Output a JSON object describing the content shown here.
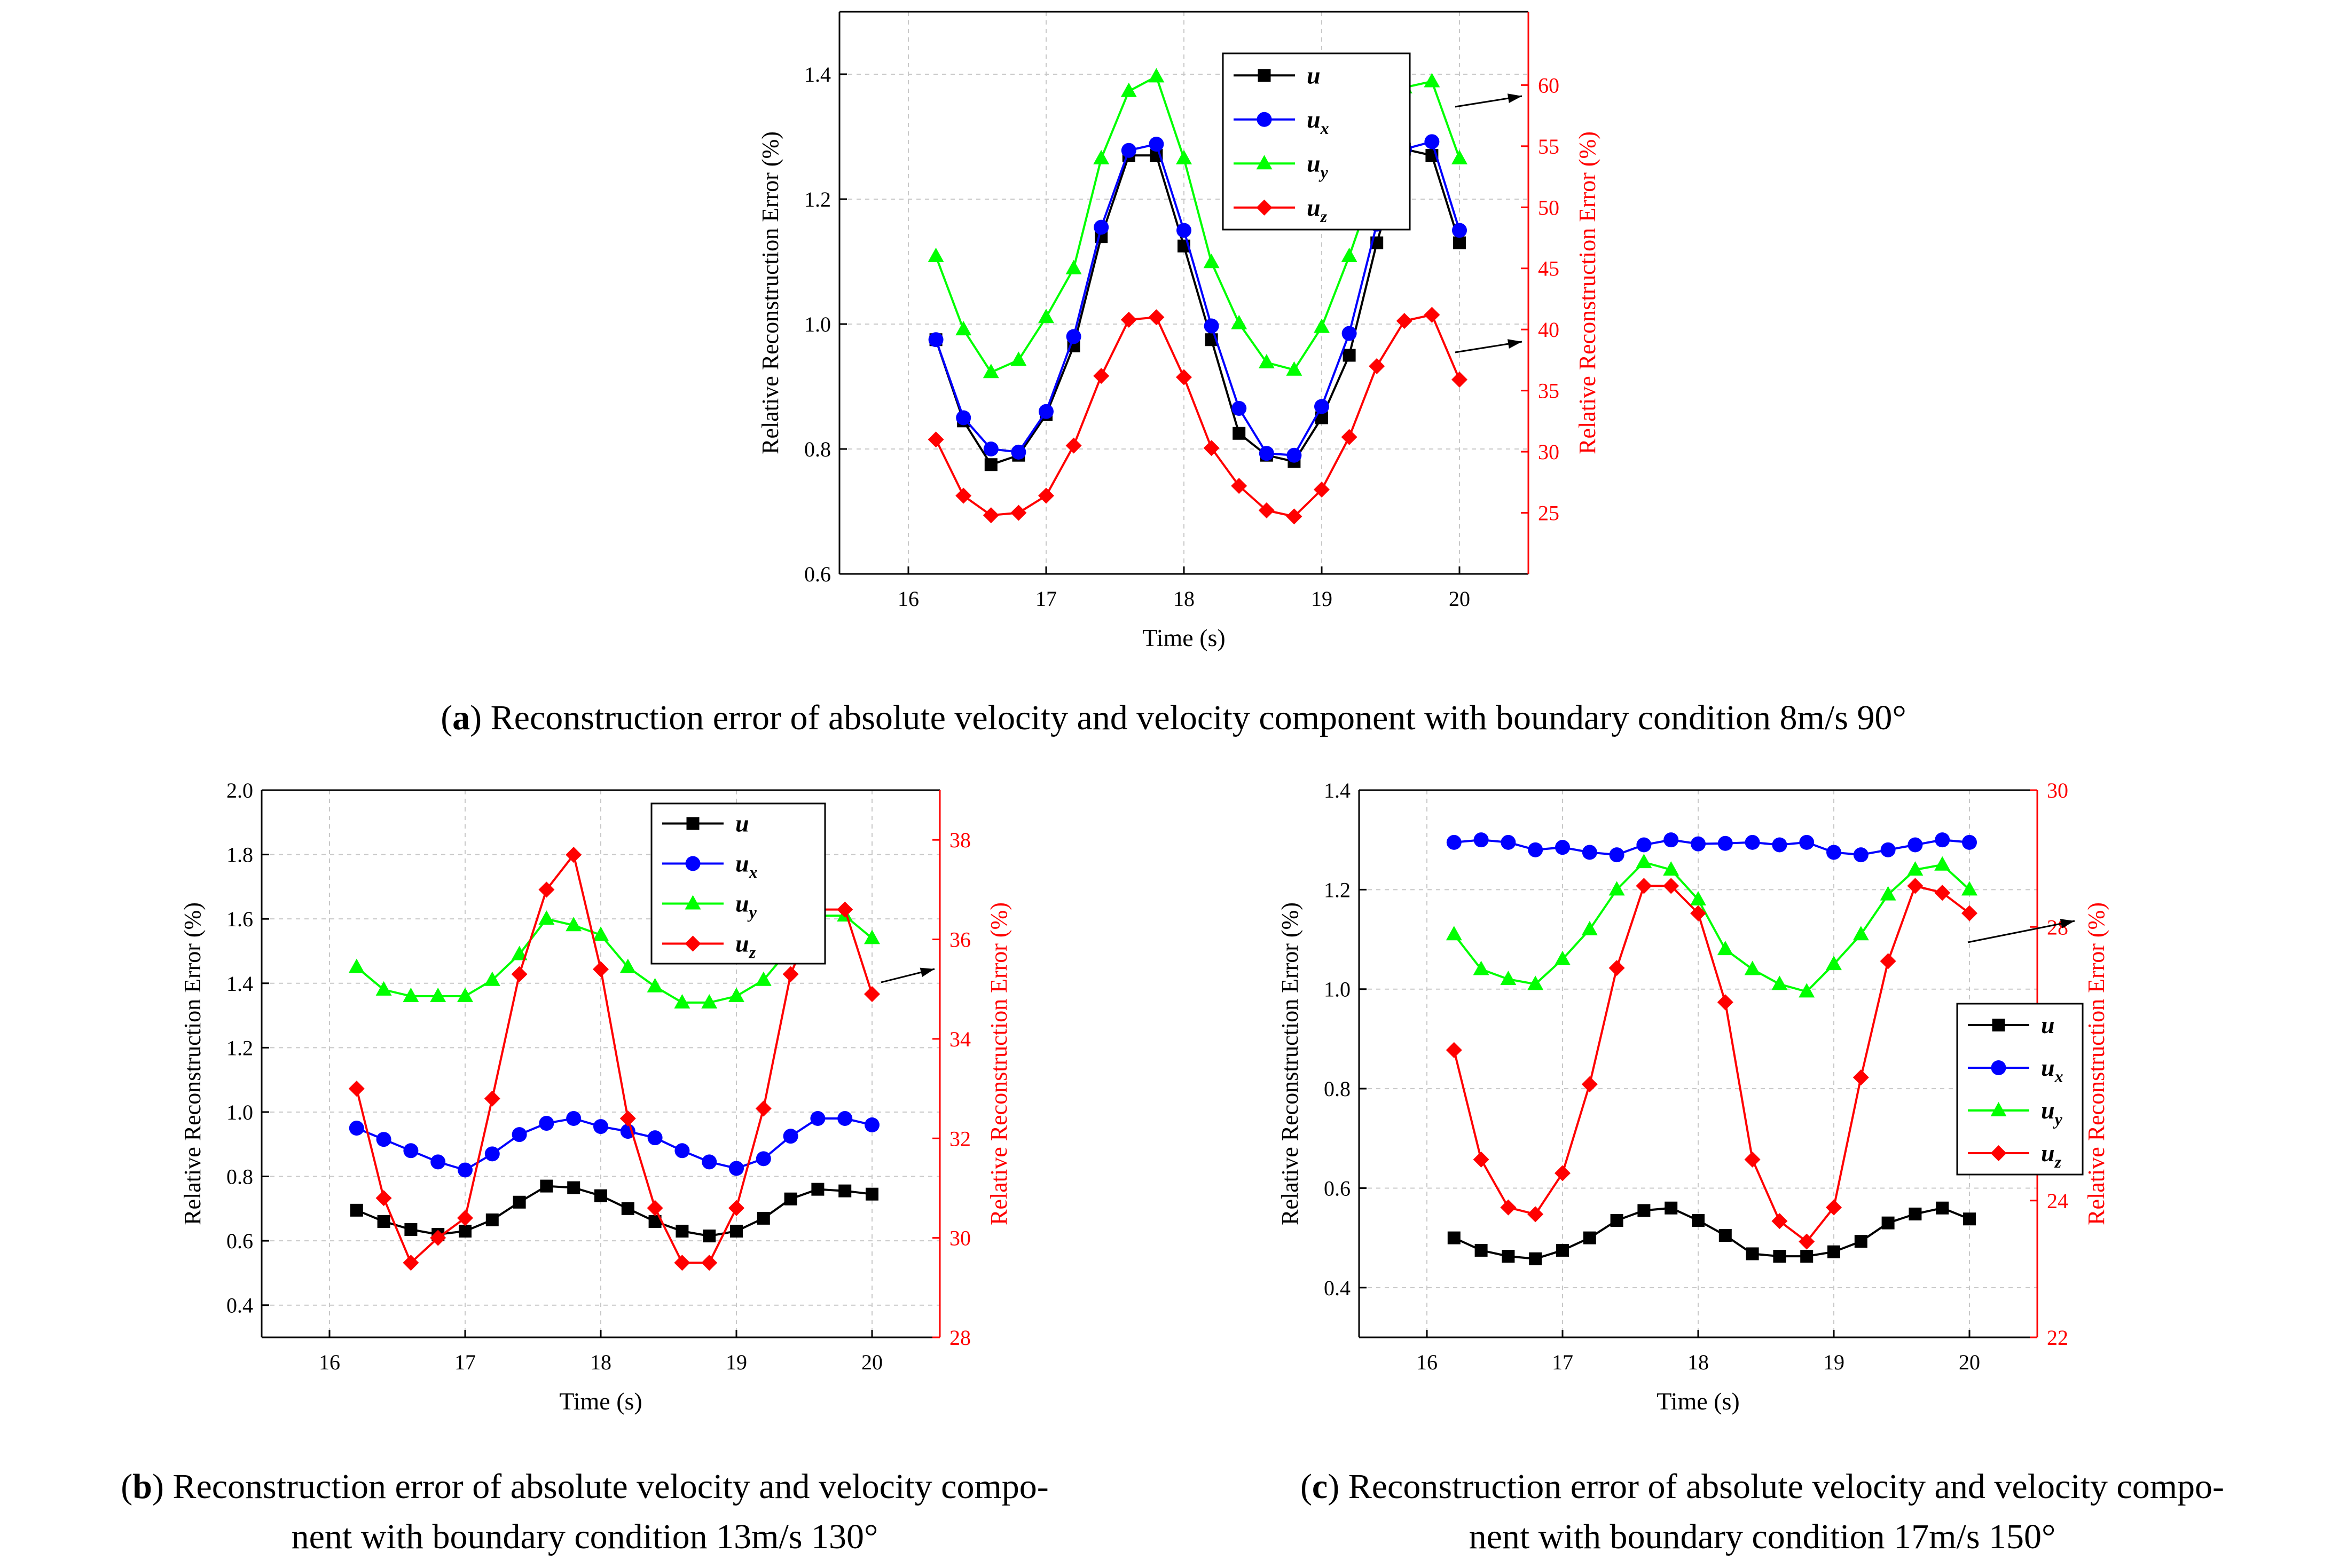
{
  "chart_data": [
    {
      "id": "a",
      "type": "line",
      "xlabel": "Time (s)",
      "ylabel_left": "Relative Reconstruction Error (%)",
      "ylabel_right": "Relative Reconstruction Error (%)",
      "xlim": [
        15.5,
        20.5
      ],
      "xticks": [
        16,
        17,
        18,
        19,
        20
      ],
      "ylim_left": [
        0.6,
        1.5
      ],
      "yticks_left": [
        0.6,
        0.8,
        1.0,
        1.2,
        1.4
      ],
      "ylim_right": [
        20,
        66
      ],
      "yticks_right": [
        25,
        30,
        35,
        40,
        45,
        50,
        55,
        60
      ],
      "legend_position": "top-center",
      "x": [
        16.2,
        16.4,
        16.6,
        16.8,
        17.0,
        17.2,
        17.4,
        17.6,
        17.8,
        18.0,
        18.2,
        18.4,
        18.6,
        18.8,
        19.0,
        19.2,
        19.4,
        19.6,
        19.8,
        20.0
      ],
      "series": [
        {
          "name": "u",
          "sub": "",
          "axis": "left",
          "color": "#000000",
          "marker": "square",
          "values": [
            0.975,
            0.845,
            0.775,
            0.79,
            0.855,
            0.965,
            1.14,
            1.27,
            1.27,
            1.125,
            0.975,
            0.825,
            0.79,
            0.78,
            0.85,
            0.95,
            1.13,
            1.28,
            1.27,
            1.13
          ]
        },
        {
          "name": "u",
          "sub": "x",
          "axis": "left",
          "color": "#0000ff",
          "marker": "circle",
          "values": [
            0.975,
            0.85,
            0.8,
            0.795,
            0.86,
            0.98,
            1.155,
            1.278,
            1.288,
            1.15,
            0.997,
            0.865,
            0.793,
            0.79,
            0.868,
            0.985,
            1.16,
            1.28,
            1.292,
            1.15
          ]
        },
        {
          "name": "u",
          "sub": "y",
          "axis": "right",
          "color": "#00ff00",
          "marker": "triangle",
          "values": [
            46,
            40,
            36.5,
            37.5,
            41,
            45,
            54,
            59.5,
            60.7,
            54,
            45.5,
            40.5,
            37.3,
            36.7,
            40.2,
            46,
            52.5,
            59.8,
            60.3,
            54
          ]
        },
        {
          "name": "u",
          "sub": "z",
          "axis": "right",
          "color": "#ff0000",
          "marker": "diamond",
          "values": [
            31,
            26.4,
            24.8,
            25,
            26.4,
            30.5,
            36.2,
            40.8,
            41,
            36.1,
            30.3,
            27.2,
            25.2,
            24.7,
            26.9,
            31.2,
            37,
            40.7,
            41.2,
            35.9
          ]
        }
      ]
    },
    {
      "id": "b",
      "type": "line",
      "xlabel": "Time (s)",
      "ylabel_left": "Relative Reconstruction Error (%)",
      "ylabel_right": "Relative Reconstruction Error (%)",
      "xlim": [
        15.5,
        20.5
      ],
      "xticks": [
        16,
        17,
        18,
        19,
        20
      ],
      "ylim_left": [
        0.3,
        2.0
      ],
      "yticks_left": [
        0.4,
        0.6,
        0.8,
        1.0,
        1.2,
        1.4,
        1.6,
        1.8,
        2.0
      ],
      "ylim_right": [
        28,
        39
      ],
      "yticks_right": [
        28,
        30,
        32,
        34,
        36,
        38
      ],
      "legend_position": "top-center",
      "x": [
        16.2,
        16.4,
        16.6,
        16.8,
        17.0,
        17.2,
        17.4,
        17.6,
        17.8,
        18.0,
        18.2,
        18.4,
        18.6,
        18.8,
        19.0,
        19.2,
        19.4,
        19.6,
        19.8,
        20.0
      ],
      "series": [
        {
          "name": "u",
          "sub": "",
          "axis": "left",
          "color": "#000000",
          "marker": "square",
          "values": [
            0.695,
            0.66,
            0.635,
            0.62,
            0.63,
            0.665,
            0.72,
            0.77,
            0.765,
            0.74,
            0.7,
            0.66,
            0.63,
            0.615,
            0.63,
            0.67,
            0.73,
            0.76,
            0.755,
            0.745
          ]
        },
        {
          "name": "u",
          "sub": "x",
          "axis": "left",
          "color": "#0000ff",
          "marker": "circle",
          "values": [
            0.95,
            0.915,
            0.88,
            0.845,
            0.82,
            0.87,
            0.93,
            0.965,
            0.98,
            0.955,
            0.94,
            0.92,
            0.88,
            0.845,
            0.825,
            0.855,
            0.925,
            0.98,
            0.98,
            0.96
          ]
        },
        {
          "name": "u",
          "sub": "y",
          "axis": "left",
          "color": "#00ff00",
          "marker": "triangle",
          "values": [
            1.45,
            1.38,
            1.36,
            1.36,
            1.36,
            1.41,
            1.49,
            1.6,
            1.58,
            1.55,
            1.45,
            1.39,
            1.34,
            1.34,
            1.36,
            1.41,
            1.51,
            1.61,
            1.61,
            1.54
          ]
        },
        {
          "name": "u",
          "sub": "z",
          "axis": "right",
          "color": "#ff0000",
          "marker": "diamond",
          "values": [
            33,
            30.8,
            29.5,
            30,
            30.4,
            32.8,
            35.3,
            37,
            37.7,
            35.4,
            32.4,
            30.6,
            29.5,
            29.5,
            30.6,
            32.6,
            35.3,
            36.6,
            36.6,
            34.9
          ]
        }
      ]
    },
    {
      "id": "c",
      "type": "line",
      "xlabel": "Time (s)",
      "ylabel_left": "Relative Reconstruction Error (%)",
      "ylabel_right": "Relative Reconstruction Error (%)",
      "xlim": [
        15.5,
        20.5
      ],
      "xticks": [
        16,
        17,
        18,
        19,
        20
      ],
      "ylim_left": [
        0.3,
        1.4
      ],
      "yticks_left": [
        0.4,
        0.6,
        0.8,
        1.0,
        1.2,
        1.4
      ],
      "ylim_right": [
        22,
        30
      ],
      "yticks_right": [
        22,
        24,
        26,
        28,
        30
      ],
      "legend_position": "center-right",
      "x": [
        16.2,
        16.4,
        16.6,
        16.8,
        17.0,
        17.2,
        17.4,
        17.6,
        17.8,
        18.0,
        18.2,
        18.4,
        18.6,
        18.8,
        19.0,
        19.2,
        19.4,
        19.6,
        19.8,
        20.0
      ],
      "series": [
        {
          "name": "u",
          "sub": "",
          "axis": "left",
          "color": "#000000",
          "marker": "square",
          "values": [
            0.5,
            0.475,
            0.463,
            0.458,
            0.475,
            0.5,
            0.535,
            0.555,
            0.56,
            0.535,
            0.505,
            0.468,
            0.463,
            0.463,
            0.472,
            0.493,
            0.53,
            0.548,
            0.56,
            0.538
          ]
        },
        {
          "name": "u",
          "sub": "x",
          "axis": "left",
          "color": "#0000ff",
          "marker": "circle",
          "values": [
            1.295,
            1.3,
            1.295,
            1.28,
            1.285,
            1.275,
            1.27,
            1.29,
            1.3,
            1.292,
            1.293,
            1.295,
            1.29,
            1.295,
            1.275,
            1.27,
            1.28,
            1.29,
            1.3,
            1.295
          ]
        },
        {
          "name": "u",
          "sub": "y",
          "axis": "left",
          "color": "#00ff00",
          "marker": "triangle",
          "values": [
            1.11,
            1.04,
            1.02,
            1.01,
            1.06,
            1.12,
            1.2,
            1.255,
            1.24,
            1.18,
            1.08,
            1.04,
            1.01,
            0.995,
            1.05,
            1.11,
            1.19,
            1.24,
            1.25,
            1.2
          ]
        },
        {
          "name": "u",
          "sub": "z",
          "axis": "right",
          "color": "#ff0000",
          "marker": "diamond",
          "values": [
            26.2,
            24.6,
            23.9,
            23.8,
            24.4,
            25.7,
            27.4,
            28.6,
            28.6,
            28.2,
            26.9,
            24.6,
            23.7,
            23.4,
            23.9,
            25.8,
            27.5,
            28.6,
            28.5,
            28.2
          ]
        }
      ]
    }
  ],
  "captions": {
    "a": {
      "label": "a",
      "text": " Reconstruction error of absolute velocity and velocity component with boundary condition 8m/s 90°"
    },
    "b": {
      "label": "b",
      "line1": " Reconstruction error of absolute velocity and velocity compo-",
      "line2": "nent with boundary condition 13m/s 130°"
    },
    "c": {
      "label": "c",
      "line1": " Reconstruction error of absolute velocity and velocity compo-",
      "line2": "nent with boundary condition 17m/s 150°"
    }
  }
}
